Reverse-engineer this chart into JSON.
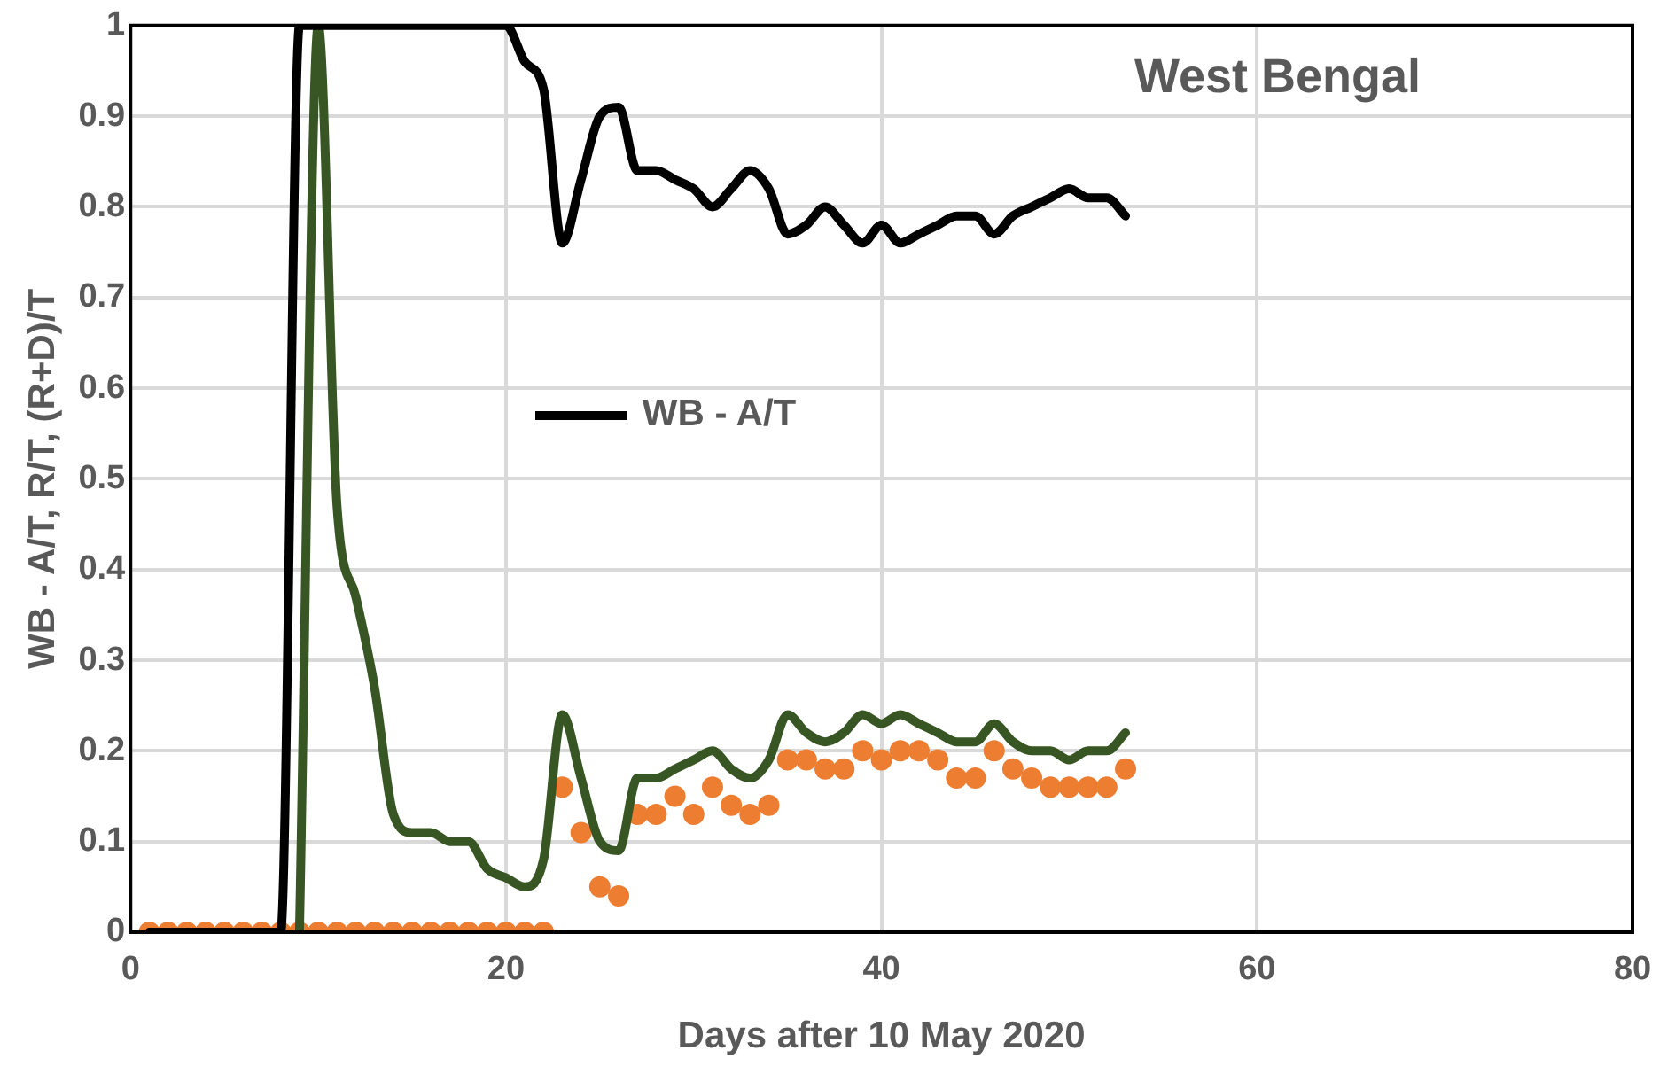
{
  "chart_data": {
    "type": "line",
    "title": "West Bengal",
    "xlabel": "Days after 10 May 2020",
    "ylabel": "WB - A/T, R/T, (R+D)/T",
    "xlim": [
      0,
      80
    ],
    "xticks": [
      0,
      20,
      40,
      60,
      80
    ],
    "ylim": [
      0,
      1
    ],
    "yticks": [
      0,
      0.1,
      0.2,
      0.3,
      0.4,
      0.5,
      0.6,
      0.7,
      0.8,
      0.9,
      1
    ],
    "grid": true,
    "legend": "left",
    "x": [
      1,
      2,
      3,
      4,
      5,
      6,
      7,
      8,
      9,
      10,
      11,
      12,
      13,
      14,
      15,
      16,
      17,
      18,
      19,
      20,
      21,
      22,
      23,
      24,
      25,
      26,
      27,
      28,
      29,
      30,
      31,
      32,
      33,
      34,
      35,
      36,
      37,
      38,
      39,
      40,
      41,
      42,
      43,
      44,
      45,
      46,
      47,
      48,
      49,
      50,
      51,
      52,
      53
    ],
    "series": [
      {
        "name": "WB - A/T",
        "type": "line",
        "marker": "none",
        "color": "#000000",
        "values": [
          0,
          0,
          0,
          0,
          0,
          0,
          0,
          0,
          1,
          1,
          1,
          1,
          1,
          1,
          1,
          1,
          1,
          1,
          1,
          1,
          0.96,
          0.93,
          0.76,
          0.83,
          0.9,
          0.91,
          0.84,
          0.84,
          0.83,
          0.82,
          0.8,
          0.82,
          0.84,
          0.82,
          0.77,
          0.78,
          0.8,
          0.78,
          0.76,
          0.78,
          0.76,
          0.77,
          0.78,
          0.79,
          0.79,
          0.77,
          0.79,
          0.8,
          0.81,
          0.82,
          0.81,
          0.81,
          0.79
        ]
      },
      {
        "type": "line",
        "marker": "none",
        "color": "#375623",
        "values": [
          null,
          null,
          null,
          null,
          null,
          null,
          null,
          null,
          0,
          1,
          0.47,
          0.37,
          0.27,
          0.13,
          0.11,
          0.11,
          0.1,
          0.1,
          0.07,
          0.06,
          0.05,
          0.08,
          0.24,
          0.17,
          0.1,
          0.09,
          0.17,
          0.17,
          0.18,
          0.19,
          0.2,
          0.18,
          0.17,
          0.19,
          0.24,
          0.22,
          0.21,
          0.22,
          0.24,
          0.23,
          0.24,
          0.23,
          0.22,
          0.21,
          0.21,
          0.23,
          0.21,
          0.2,
          0.2,
          0.19,
          0.2,
          0.2,
          0.22
        ]
      },
      {
        "type": "scatter",
        "marker": "circle",
        "color": "#ed7d31",
        "values": [
          0,
          0,
          0,
          0,
          0,
          0,
          0,
          0,
          0,
          0,
          0,
          0,
          0,
          0,
          0,
          0,
          0,
          0,
          0,
          0,
          0,
          0,
          0.16,
          0.11,
          0.05,
          0.04,
          0.13,
          0.13,
          0.15,
          0.13,
          0.16,
          0.14,
          0.13,
          0.14,
          0.19,
          0.19,
          0.18,
          0.18,
          0.2,
          0.19,
          0.2,
          0.2,
          0.19,
          0.17,
          0.17,
          0.2,
          0.18,
          0.17,
          0.16,
          0.16,
          0.16,
          0.16,
          0.18
        ]
      }
    ]
  }
}
